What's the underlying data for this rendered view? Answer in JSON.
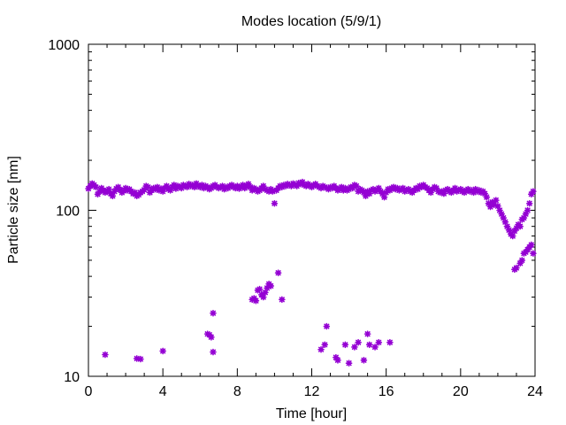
{
  "chart_data": {
    "type": "scatter",
    "title": "Modes location (5/9/1)",
    "xlabel": "Time [hour]",
    "ylabel": "Particle size [nm]",
    "xlim": [
      0,
      24
    ],
    "ylim": [
      10,
      1000
    ],
    "y_scale": "log",
    "grid": false,
    "legend": "none",
    "marker_color": "#9400d3",
    "xticks": [
      0,
      4,
      8,
      12,
      16,
      20,
      24
    ],
    "yticks": [
      10,
      100,
      1000
    ],
    "series": [
      {
        "values": [
          [
            0.0,
            135
          ],
          [
            0.1,
            140
          ],
          [
            0.2,
            145
          ],
          [
            0.3,
            142
          ],
          [
            0.4,
            138
          ],
          [
            0.5,
            125
          ],
          [
            0.6,
            130
          ],
          [
            0.7,
            136
          ],
          [
            0.8,
            132
          ],
          [
            0.9,
            128
          ],
          [
            1.0,
            130
          ],
          [
            1.1,
            134
          ],
          [
            1.2,
            126
          ],
          [
            1.3,
            122
          ],
          [
            1.4,
            130
          ],
          [
            1.5,
            135
          ],
          [
            1.6,
            138
          ],
          [
            1.7,
            133
          ],
          [
            1.8,
            128
          ],
          [
            1.9,
            131
          ],
          [
            2.0,
            136
          ],
          [
            2.1,
            132
          ],
          [
            2.2,
            134
          ],
          [
            2.3,
            130
          ],
          [
            2.4,
            126
          ],
          [
            2.5,
            128
          ],
          [
            2.6,
            122
          ],
          [
            2.7,
            124
          ],
          [
            2.8,
            128
          ],
          [
            2.9,
            130
          ],
          [
            3.0,
            133
          ],
          [
            3.1,
            140
          ],
          [
            3.2,
            138
          ],
          [
            3.3,
            128
          ],
          [
            3.4,
            132
          ],
          [
            3.5,
            136
          ],
          [
            3.6,
            134
          ],
          [
            3.7,
            138
          ],
          [
            3.8,
            132
          ],
          [
            3.9,
            135
          ],
          [
            4.0,
            130
          ],
          [
            4.1,
            136
          ],
          [
            4.2,
            140
          ],
          [
            4.3,
            134
          ],
          [
            4.4,
            132
          ],
          [
            4.5,
            138
          ],
          [
            4.6,
            142
          ],
          [
            4.7,
            135
          ],
          [
            4.8,
            140
          ],
          [
            4.9,
            138
          ],
          [
            5.0,
            136
          ],
          [
            5.1,
            142
          ],
          [
            5.2,
            140
          ],
          [
            5.3,
            138
          ],
          [
            5.4,
            144
          ],
          [
            5.5,
            140
          ],
          [
            5.6,
            142
          ],
          [
            5.7,
            138
          ],
          [
            5.8,
            145
          ],
          [
            5.9,
            140
          ],
          [
            6.0,
            138
          ],
          [
            6.1,
            142
          ],
          [
            6.2,
            136
          ],
          [
            6.3,
            140
          ],
          [
            6.4,
            138
          ],
          [
            6.5,
            134
          ],
          [
            6.6,
            136
          ],
          [
            6.7,
            140
          ],
          [
            6.8,
            142
          ],
          [
            6.9,
            138
          ],
          [
            7.0,
            136
          ],
          [
            7.1,
            138
          ],
          [
            7.2,
            140
          ],
          [
            7.3,
            134
          ],
          [
            7.4,
            138
          ],
          [
            7.5,
            136
          ],
          [
            7.6,
            140
          ],
          [
            7.7,
            142
          ],
          [
            7.8,
            138
          ],
          [
            7.9,
            136
          ],
          [
            8.0,
            140
          ],
          [
            8.1,
            135
          ],
          [
            8.2,
            138
          ],
          [
            8.3,
            142
          ],
          [
            8.4,
            136
          ],
          [
            8.5,
            140
          ],
          [
            8.6,
            144
          ],
          [
            8.7,
            138
          ],
          [
            8.8,
            132
          ],
          [
            8.9,
            136
          ],
          [
            9.0,
            134
          ],
          [
            9.1,
            130
          ],
          [
            9.2,
            132
          ],
          [
            9.3,
            136
          ],
          [
            9.4,
            140
          ],
          [
            9.5,
            134
          ],
          [
            9.6,
            132
          ],
          [
            9.7,
            130
          ],
          [
            9.8,
            134
          ],
          [
            9.9,
            130
          ],
          [
            10.0,
            110
          ],
          [
            10.1,
            132
          ],
          [
            10.2,
            136
          ],
          [
            10.3,
            140
          ],
          [
            10.4,
            138
          ],
          [
            10.5,
            142
          ],
          [
            10.6,
            140
          ],
          [
            10.7,
            144
          ],
          [
            10.8,
            142
          ],
          [
            10.9,
            140
          ],
          [
            11.0,
            145
          ],
          [
            11.1,
            142
          ],
          [
            11.2,
            140
          ],
          [
            11.3,
            146
          ],
          [
            11.4,
            144
          ],
          [
            11.5,
            148
          ],
          [
            11.6,
            142
          ],
          [
            11.7,
            140
          ],
          [
            11.8,
            144
          ],
          [
            11.9,
            140
          ],
          [
            12.0,
            138
          ],
          [
            12.1,
            142
          ],
          [
            12.2,
            144
          ],
          [
            12.3,
            140
          ],
          [
            12.4,
            138
          ],
          [
            12.5,
            136
          ],
          [
            12.6,
            140
          ],
          [
            12.7,
            138
          ],
          [
            12.8,
            136
          ],
          [
            12.9,
            134
          ],
          [
            13.0,
            138
          ],
          [
            13.1,
            136
          ],
          [
            13.2,
            140
          ],
          [
            13.3,
            136
          ],
          [
            13.4,
            132
          ],
          [
            13.5,
            134
          ],
          [
            13.6,
            138
          ],
          [
            13.7,
            132
          ],
          [
            13.8,
            136
          ],
          [
            13.9,
            132
          ],
          [
            14.0,
            134
          ],
          [
            14.1,
            138
          ],
          [
            14.2,
            136
          ],
          [
            14.3,
            142
          ],
          [
            14.4,
            140
          ],
          [
            14.5,
            130
          ],
          [
            14.6,
            134
          ],
          [
            14.7,
            132
          ],
          [
            14.8,
            128
          ],
          [
            14.9,
            122
          ],
          [
            15.0,
            130
          ],
          [
            15.1,
            126
          ],
          [
            15.2,
            132
          ],
          [
            15.3,
            134
          ],
          [
            15.4,
            130
          ],
          [
            15.5,
            132
          ],
          [
            15.6,
            136
          ],
          [
            15.7,
            130
          ],
          [
            15.8,
            126
          ],
          [
            15.9,
            120
          ],
          [
            16.0,
            128
          ],
          [
            16.1,
            134
          ],
          [
            16.2,
            132
          ],
          [
            16.3,
            136
          ],
          [
            16.4,
            138
          ],
          [
            16.5,
            134
          ],
          [
            16.6,
            136
          ],
          [
            16.7,
            132
          ],
          [
            16.8,
            134
          ],
          [
            16.9,
            136
          ],
          [
            17.0,
            130
          ],
          [
            17.1,
            132
          ],
          [
            17.2,
            134
          ],
          [
            17.3,
            130
          ],
          [
            17.4,
            128
          ],
          [
            17.5,
            132
          ],
          [
            17.6,
            136
          ],
          [
            17.7,
            134
          ],
          [
            17.8,
            140
          ],
          [
            17.9,
            138
          ],
          [
            18.0,
            142
          ],
          [
            18.1,
            138
          ],
          [
            18.2,
            136
          ],
          [
            18.3,
            132
          ],
          [
            18.4,
            128
          ],
          [
            18.5,
            134
          ],
          [
            18.6,
            138
          ],
          [
            18.7,
            136
          ],
          [
            18.8,
            130
          ],
          [
            18.9,
            128
          ],
          [
            19.0,
            130
          ],
          [
            19.1,
            126
          ],
          [
            19.2,
            132
          ],
          [
            19.3,
            134
          ],
          [
            19.4,
            130
          ],
          [
            19.5,
            128
          ],
          [
            19.6,
            132
          ],
          [
            19.7,
            136
          ],
          [
            19.8,
            130
          ],
          [
            19.9,
            132
          ],
          [
            20.0,
            134
          ],
          [
            20.1,
            130
          ],
          [
            20.2,
            128
          ],
          [
            20.3,
            132
          ],
          [
            20.4,
            134
          ],
          [
            20.5,
            130
          ],
          [
            20.6,
            132
          ],
          [
            20.7,
            128
          ],
          [
            20.8,
            134
          ],
          [
            20.9,
            130
          ],
          [
            21.0,
            132
          ],
          [
            21.1,
            128
          ],
          [
            21.2,
            130
          ],
          [
            21.3,
            126
          ],
          [
            21.4,
            120
          ],
          [
            21.5,
            110
          ],
          [
            21.6,
            105
          ],
          [
            21.7,
            112
          ],
          [
            21.8,
            108
          ],
          [
            21.9,
            115
          ],
          [
            22.0,
            106
          ],
          [
            22.1,
            100
          ],
          [
            22.2,
            95
          ],
          [
            22.3,
            90
          ],
          [
            22.4,
            85
          ],
          [
            22.5,
            80
          ],
          [
            22.6,
            76
          ],
          [
            22.7,
            72
          ],
          [
            22.8,
            70
          ],
          [
            22.9,
            75
          ],
          [
            23.0,
            78
          ],
          [
            23.1,
            82
          ],
          [
            23.2,
            80
          ],
          [
            23.3,
            88
          ],
          [
            23.4,
            90
          ],
          [
            23.5,
            95
          ],
          [
            23.6,
            100
          ],
          [
            23.7,
            110
          ],
          [
            23.8,
            125
          ],
          [
            23.9,
            130
          ],
          [
            0.9,
            13.5
          ],
          [
            2.6,
            12.8
          ],
          [
            2.8,
            12.7
          ],
          [
            4.0,
            14.2
          ],
          [
            6.4,
            18
          ],
          [
            6.5,
            17.8
          ],
          [
            6.6,
            17.2
          ],
          [
            6.7,
            24
          ],
          [
            6.7,
            14
          ],
          [
            8.8,
            29
          ],
          [
            8.9,
            29.5
          ],
          [
            9.0,
            28.5
          ],
          [
            9.1,
            33
          ],
          [
            9.2,
            33.5
          ],
          [
            9.3,
            31
          ],
          [
            9.4,
            30
          ],
          [
            9.5,
            32
          ],
          [
            9.6,
            34
          ],
          [
            9.7,
            36
          ],
          [
            9.8,
            35
          ],
          [
            10.2,
            42
          ],
          [
            10.4,
            29
          ],
          [
            12.5,
            14.5
          ],
          [
            12.7,
            15.5
          ],
          [
            12.8,
            20
          ],
          [
            13.3,
            13
          ],
          [
            13.4,
            12.5
          ],
          [
            13.8,
            15.5
          ],
          [
            14.0,
            12
          ],
          [
            14.3,
            15
          ],
          [
            14.5,
            16
          ],
          [
            14.8,
            12.5
          ],
          [
            15.0,
            18
          ],
          [
            15.1,
            15.5
          ],
          [
            15.4,
            15
          ],
          [
            15.6,
            16
          ],
          [
            16.2,
            16
          ],
          [
            22.9,
            44
          ],
          [
            23.0,
            45
          ],
          [
            23.2,
            48
          ],
          [
            23.3,
            50
          ],
          [
            23.4,
            55
          ],
          [
            23.5,
            56
          ],
          [
            23.6,
            58
          ],
          [
            23.7,
            60
          ],
          [
            23.8,
            62
          ],
          [
            23.9,
            55
          ]
        ]
      }
    ]
  }
}
